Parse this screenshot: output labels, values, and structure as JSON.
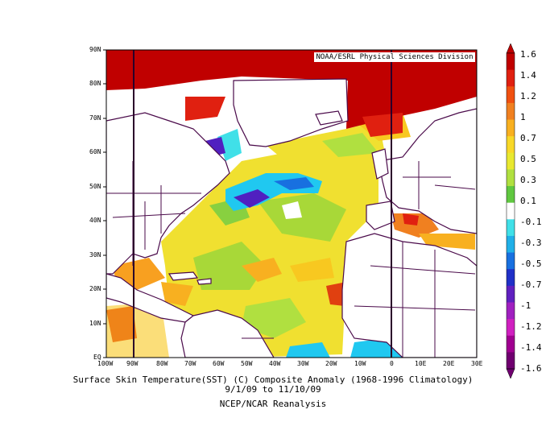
{
  "map": {
    "division_label": "NOAA/ESRL Physical Sciences Division",
    "lat_labels": [
      "90N",
      "80N",
      "70N",
      "60N",
      "50N",
      "40N",
      "30N",
      "20N",
      "10N",
      "EQ"
    ],
    "lon_labels": [
      "100W",
      "90W",
      "80W",
      "70W",
      "60W",
      "50W",
      "40W",
      "30W",
      "20W",
      "10W",
      "0",
      "10E",
      "20E",
      "30E"
    ],
    "reference_lines": [
      "90W",
      "0"
    ]
  },
  "colorbar": {
    "labels": [
      "1.6",
      "1.4",
      "1.2",
      "1",
      "0.7",
      "0.5",
      "0.3",
      "0.1",
      "-0.1",
      "-0.3",
      "-0.5",
      "-0.7",
      "-1",
      "-1.2",
      "-1.4",
      "-1.6"
    ],
    "colors": [
      "#c00000",
      "#e02010",
      "#f05010",
      "#f08020",
      "#f8b020",
      "#f8d828",
      "#e8e830",
      "#b0e040",
      "#60c840",
      "#ffffff",
      "#40e0e8",
      "#20b0e8",
      "#1870e0",
      "#2030c8",
      "#6020c0",
      "#a020c0",
      "#d020c0",
      "#a00090",
      "#700070"
    ]
  },
  "caption": {
    "line1": "Surface Skin Temperature(SST) (C) Composite Anomaly (1968-1996 Climatology)",
    "line2": "9/1/09  to 11/10/09",
    "line3": "NCEP/NCAR Reanalysis"
  }
}
